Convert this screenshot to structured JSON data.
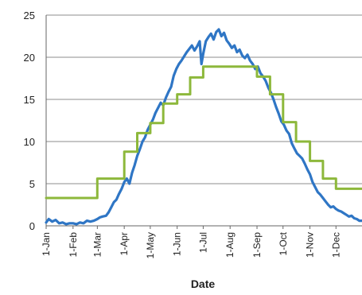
{
  "chart_data": {
    "type": "line",
    "title": "",
    "xlabel": "Date",
    "ylabel": "",
    "ylim": [
      0,
      25
    ],
    "yticks": [
      0,
      5,
      10,
      15,
      20,
      25
    ],
    "grid": true,
    "legend": "none",
    "x_unit": "day of year",
    "xticks": [
      {
        "day": 1,
        "label": "1-Jan"
      },
      {
        "day": 32,
        "label": "1-Feb"
      },
      {
        "day": 60,
        "label": "1-Mar"
      },
      {
        "day": 91,
        "label": "1-Apr"
      },
      {
        "day": 121,
        "label": "1-May"
      },
      {
        "day": 152,
        "label": "1-Jun"
      },
      {
        "day": 182,
        "label": "1-Jul"
      },
      {
        "day": 213,
        "label": "1-Aug"
      },
      {
        "day": 244,
        "label": "1-Sep"
      },
      {
        "day": 274,
        "label": "1-Oct"
      },
      {
        "day": 305,
        "label": "1-Nov"
      },
      {
        "day": 335,
        "label": "1-Dec"
      }
    ],
    "xlim": [
      1,
      365
    ],
    "series": [
      {
        "color": "#2f76c5",
        "style": "line",
        "points": [
          [
            1,
            0.4
          ],
          [
            4,
            0.8
          ],
          [
            8,
            0.5
          ],
          [
            12,
            0.7
          ],
          [
            16,
            0.3
          ],
          [
            20,
            0.4
          ],
          [
            24,
            0.2
          ],
          [
            28,
            0.3
          ],
          [
            32,
            0.3
          ],
          [
            36,
            0.2
          ],
          [
            40,
            0.4
          ],
          [
            44,
            0.3
          ],
          [
            48,
            0.6
          ],
          [
            52,
            0.5
          ],
          [
            56,
            0.6
          ],
          [
            60,
            0.8
          ],
          [
            63,
            1.0
          ],
          [
            66,
            1.1
          ],
          [
            70,
            1.2
          ],
          [
            73,
            1.6
          ],
          [
            76,
            2.2
          ],
          [
            79,
            2.8
          ],
          [
            82,
            3.1
          ],
          [
            85,
            3.8
          ],
          [
            88,
            4.4
          ],
          [
            91,
            5.2
          ],
          [
            94,
            5.6
          ],
          [
            97,
            5.0
          ],
          [
            100,
            6.3
          ],
          [
            103,
            7.2
          ],
          [
            106,
            8.3
          ],
          [
            109,
            9.1
          ],
          [
            112,
            10.0
          ],
          [
            115,
            10.5
          ],
          [
            118,
            11.4
          ],
          [
            121,
            12.0
          ],
          [
            124,
            12.6
          ],
          [
            127,
            13.4
          ],
          [
            130,
            14.0
          ],
          [
            133,
            14.6
          ],
          [
            136,
            14.3
          ],
          [
            139,
            15.2
          ],
          [
            142,
            15.9
          ],
          [
            145,
            16.5
          ],
          [
            148,
            17.8
          ],
          [
            151,
            18.6
          ],
          [
            154,
            19.2
          ],
          [
            157,
            19.6
          ],
          [
            160,
            20.1
          ],
          [
            163,
            20.6
          ],
          [
            166,
            21.0
          ],
          [
            169,
            21.4
          ],
          [
            172,
            20.8
          ],
          [
            175,
            21.3
          ],
          [
            178,
            21.9
          ],
          [
            180,
            19.2
          ],
          [
            182,
            20.4
          ],
          [
            185,
            21.9
          ],
          [
            188,
            22.4
          ],
          [
            191,
            22.8
          ],
          [
            194,
            22.1
          ],
          [
            197,
            23.0
          ],
          [
            200,
            23.3
          ],
          [
            203,
            22.5
          ],
          [
            206,
            22.9
          ],
          [
            209,
            22.0
          ],
          [
            212,
            21.6
          ],
          [
            215,
            21.1
          ],
          [
            218,
            21.4
          ],
          [
            221,
            20.6
          ],
          [
            224,
            20.9
          ],
          [
            227,
            20.2
          ],
          [
            230,
            19.9
          ],
          [
            233,
            20.3
          ],
          [
            236,
            19.6
          ],
          [
            239,
            19.2
          ],
          [
            242,
            18.6
          ],
          [
            245,
            18.9
          ],
          [
            248,
            18.1
          ],
          [
            251,
            17.7
          ],
          [
            254,
            17.2
          ],
          [
            257,
            16.4
          ],
          [
            260,
            15.8
          ],
          [
            263,
            15.0
          ],
          [
            266,
            14.1
          ],
          [
            269,
            13.3
          ],
          [
            272,
            12.4
          ],
          [
            275,
            12.0
          ],
          [
            278,
            11.3
          ],
          [
            281,
            10.9
          ],
          [
            284,
            9.8
          ],
          [
            287,
            9.2
          ],
          [
            290,
            8.6
          ],
          [
            293,
            8.3
          ],
          [
            296,
            8.0
          ],
          [
            299,
            7.4
          ],
          [
            302,
            6.7
          ],
          [
            305,
            6.1
          ],
          [
            308,
            5.2
          ],
          [
            311,
            4.6
          ],
          [
            314,
            4.0
          ],
          [
            317,
            3.7
          ],
          [
            320,
            3.3
          ],
          [
            323,
            2.9
          ],
          [
            326,
            2.5
          ],
          [
            329,
            2.2
          ],
          [
            332,
            2.3
          ],
          [
            335,
            2.0
          ],
          [
            338,
            1.8
          ],
          [
            341,
            1.7
          ],
          [
            344,
            1.5
          ],
          [
            347,
            1.3
          ],
          [
            350,
            1.1
          ],
          [
            353,
            1.2
          ],
          [
            356,
            0.9
          ],
          [
            359,
            0.8
          ],
          [
            362,
            0.6
          ],
          [
            365,
            0.6
          ]
        ]
      },
      {
        "color": "#8db83b",
        "style": "step",
        "points": [
          [
            1,
            3.3
          ],
          [
            60,
            3.3
          ],
          [
            60,
            5.6
          ],
          [
            91,
            5.6
          ],
          [
            91,
            8.8
          ],
          [
            106,
            8.8
          ],
          [
            106,
            11.0
          ],
          [
            121,
            11.0
          ],
          [
            121,
            12.2
          ],
          [
            136,
            12.2
          ],
          [
            136,
            14.5
          ],
          [
            152,
            14.5
          ],
          [
            152,
            15.6
          ],
          [
            167,
            15.6
          ],
          [
            167,
            17.6
          ],
          [
            182,
            17.6
          ],
          [
            182,
            18.9
          ],
          [
            244,
            18.9
          ],
          [
            244,
            17.7
          ],
          [
            259,
            17.7
          ],
          [
            259,
            15.6
          ],
          [
            274,
            15.6
          ],
          [
            274,
            12.3
          ],
          [
            289,
            12.3
          ],
          [
            289,
            10.0
          ],
          [
            305,
            10.0
          ],
          [
            305,
            7.7
          ],
          [
            320,
            7.7
          ],
          [
            320,
            5.6
          ],
          [
            335,
            5.6
          ],
          [
            335,
            4.4
          ],
          [
            365,
            4.4
          ]
        ]
      }
    ]
  }
}
